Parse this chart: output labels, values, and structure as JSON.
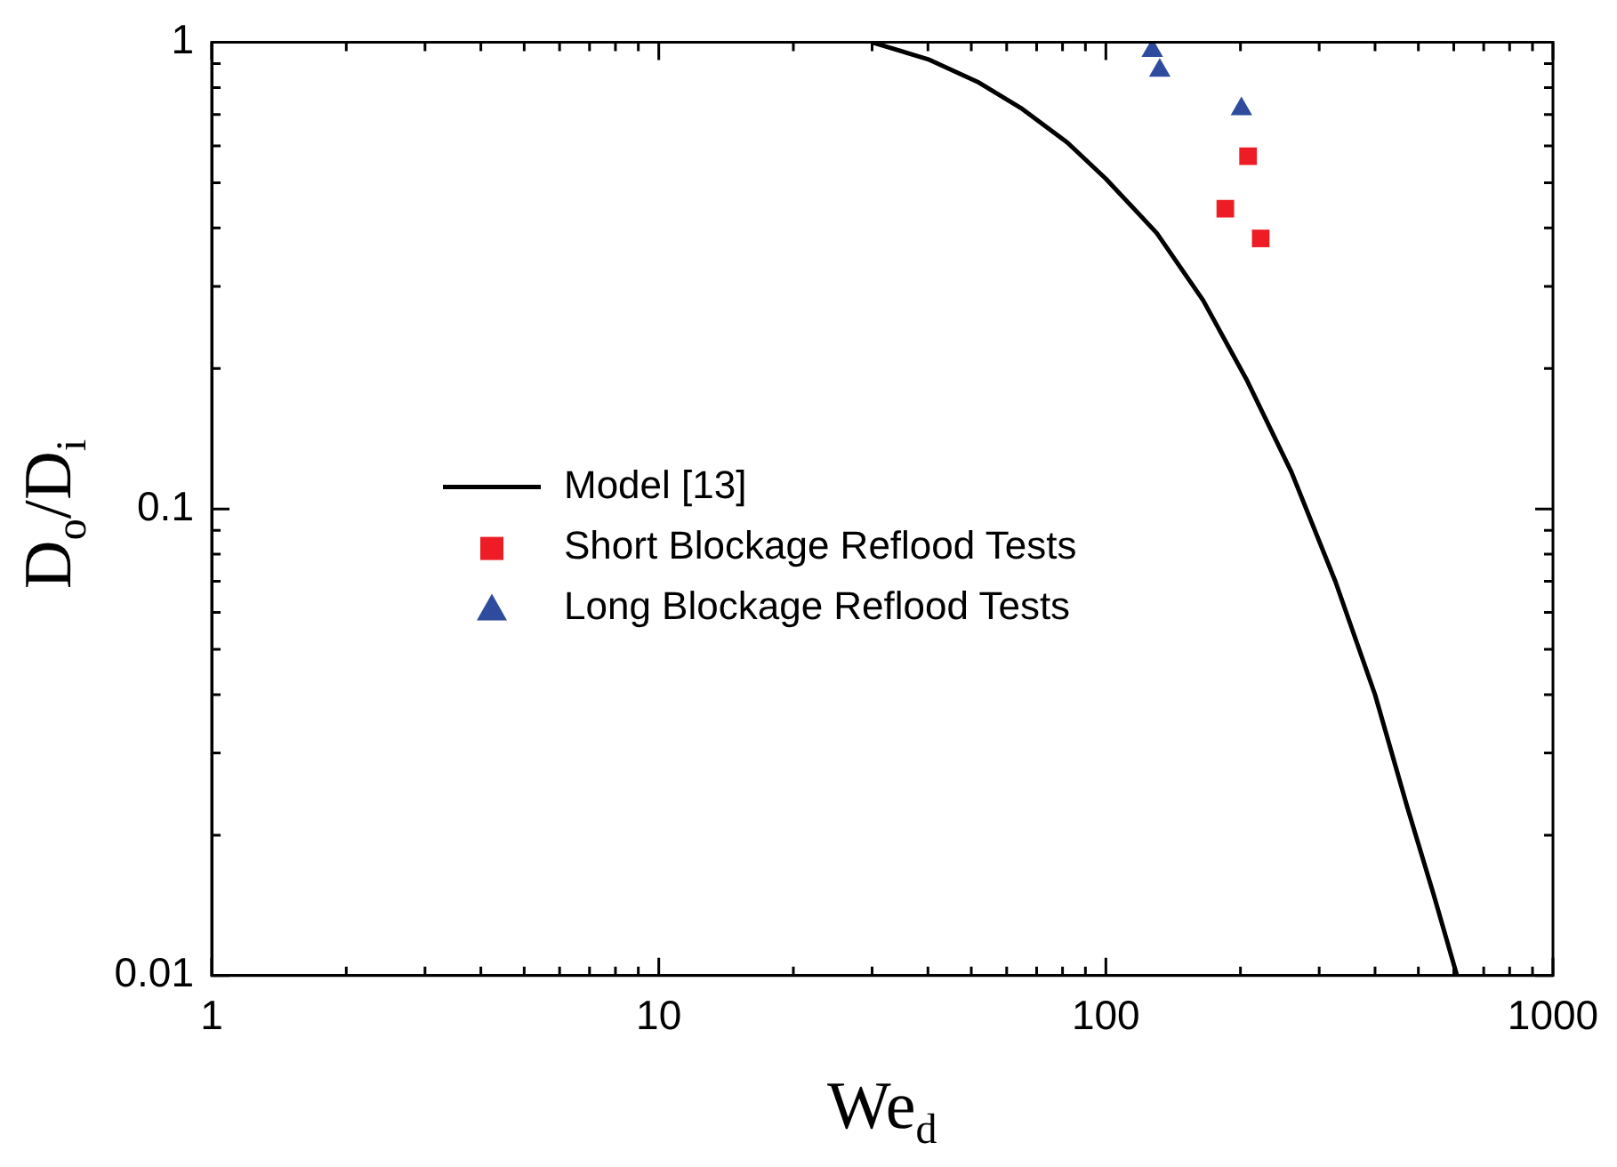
{
  "chart_data": {
    "type": "scatter",
    "xlabel": "We$_{d}$",
    "ylabel": "D$_{o}$/D$_{i}$",
    "log": "xy",
    "xlim": [
      1,
      1000
    ],
    "ylim": [
      0.01,
      1
    ],
    "xticks": [
      1,
      {
        "value": 2,
        "label": null
      },
      {
        "value": 3,
        "label": null
      },
      {
        "value": 4,
        "label": null
      },
      {
        "value": 5,
        "label": null
      },
      {
        "value": 6,
        "label": null
      },
      {
        "value": 7,
        "label": null
      },
      {
        "value": 8,
        "label": null
      },
      {
        "value": 9,
        "label": null
      },
      10,
      {
        "value": 20,
        "label": null
      },
      {
        "value": 30,
        "label": null
      },
      {
        "value": 40,
        "label": null
      },
      {
        "value": 50,
        "label": null
      },
      {
        "value": 60,
        "label": null
      },
      {
        "value": 70,
        "label": null
      },
      {
        "value": 80,
        "label": null
      },
      {
        "value": 90,
        "label": null
      },
      100,
      {
        "value": 200,
        "label": null
      },
      {
        "value": 300,
        "label": null
      },
      {
        "value": 400,
        "label": null
      },
      {
        "value": 500,
        "label": null
      },
      {
        "value": 600,
        "label": null
      },
      {
        "value": 700,
        "label": null
      },
      {
        "value": 800,
        "label": null
      },
      {
        "value": 900,
        "label": null
      },
      1000
    ],
    "yticks": [
      0.01,
      {
        "value": 0.02,
        "label": null
      },
      {
        "value": 0.03,
        "label": null
      },
      {
        "value": 0.04,
        "label": null
      },
      {
        "value": 0.05,
        "label": null
      },
      {
        "value": 0.06,
        "label": null
      },
      {
        "value": 0.07,
        "label": null
      },
      {
        "value": 0.08,
        "label": null
      },
      {
        "value": 0.09,
        "label": null
      },
      0.1,
      {
        "value": 0.2,
        "label": null
      },
      {
        "value": 0.3,
        "label": null
      },
      {
        "value": 0.4,
        "label": null
      },
      {
        "value": 0.5,
        "label": null
      },
      {
        "value": 0.6,
        "label": null
      },
      {
        "value": 0.7,
        "label": null
      },
      {
        "value": 0.8,
        "label": null
      },
      {
        "value": 0.9,
        "label": null
      },
      1
    ],
    "grid": false,
    "legend": "center",
    "series": [
      {
        "name": "Model [13]",
        "type": "line",
        "color": "#000000",
        "marker": "none",
        "line_style": "solid",
        "x": [
          30,
          40,
          52,
          65,
          82,
          100,
          130,
          165,
          206,
          260,
          326,
          400,
          472,
          540,
          610
        ],
        "values": [
          1,
          0.92,
          0.82,
          0.72,
          0.61,
          0.51,
          0.39,
          0.28,
          0.19,
          0.12,
          0.07,
          0.04,
          0.023,
          0.015,
          0.01
        ]
      },
      {
        "name": "Short Blockage Reflood Tests",
        "color": "#ee1c25",
        "marker": "square",
        "x": [
          185,
          208,
          222
        ],
        "values": [
          0.44,
          0.57,
          0.38
        ]
      },
      {
        "name": "Long Blockage Reflood Tests",
        "color": "#2e4b9e",
        "marker": "triangle",
        "x": [
          127,
          132,
          201
        ],
        "values": [
          0.96,
          0.87,
          0.72
        ]
      }
    ]
  }
}
